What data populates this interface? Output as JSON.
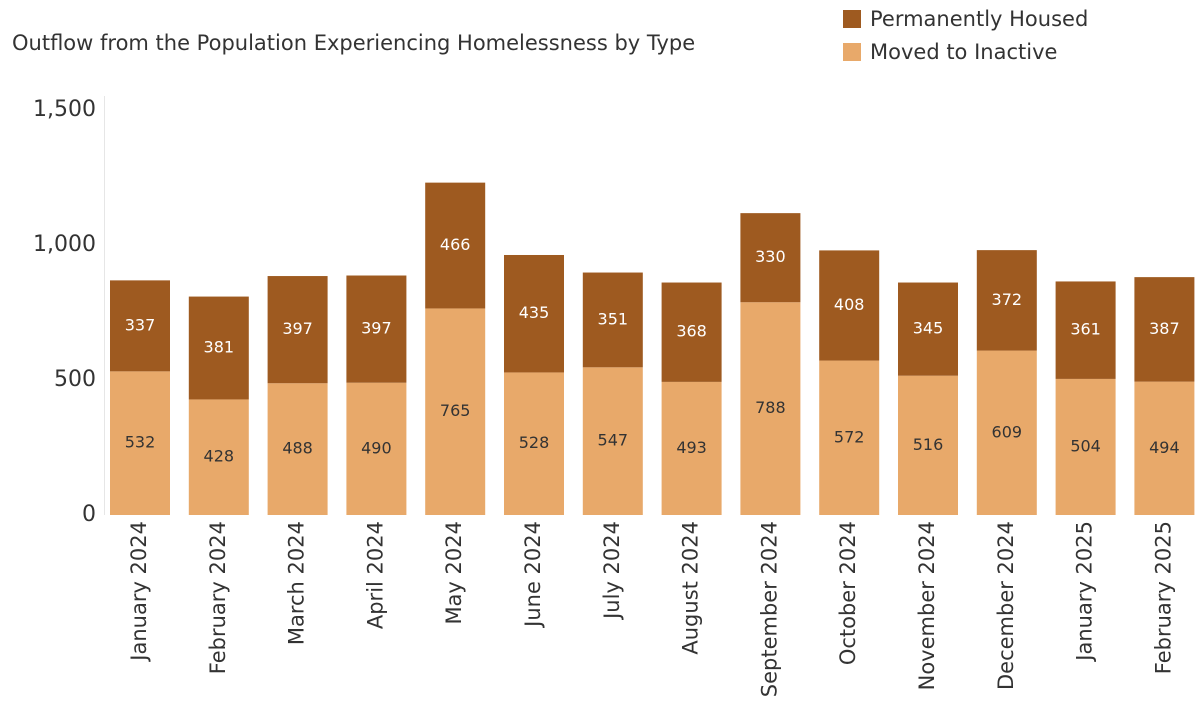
{
  "chart_data": {
    "type": "bar",
    "stacked": true,
    "title": "Outflow from the Population Experiencing Homelessness by Type",
    "xlabel": "",
    "ylabel": "",
    "ylim": [
      0,
      1500
    ],
    "yticks": [
      0,
      500,
      1000,
      1500
    ],
    "ytick_labels": [
      "0",
      "500",
      "1,000",
      "1,500"
    ],
    "grid": false,
    "legend_position": "top-right",
    "categories": [
      "January 2024",
      "February 2024",
      "March 2024",
      "April 2024",
      "May 2024",
      "June 2024",
      "July 2024",
      "August 2024",
      "September 2024",
      "October 2024",
      "November 2024",
      "December 2024",
      "January 2025",
      "February 2025"
    ],
    "series": [
      {
        "name": "Moved to Inactive",
        "color": "#e8a96a",
        "values": [
          532,
          428,
          488,
          490,
          765,
          528,
          547,
          493,
          788,
          572,
          516,
          609,
          504,
          494
        ]
      },
      {
        "name": "Permanently Housed",
        "color": "#9e5a20",
        "values": [
          337,
          381,
          397,
          397,
          466,
          435,
          351,
          368,
          330,
          408,
          345,
          372,
          361,
          387
        ]
      }
    ],
    "legend": [
      {
        "label": "Permanently Housed",
        "color": "#9e5a20"
      },
      {
        "label": "Moved to Inactive",
        "color": "#e8a96a"
      }
    ]
  }
}
